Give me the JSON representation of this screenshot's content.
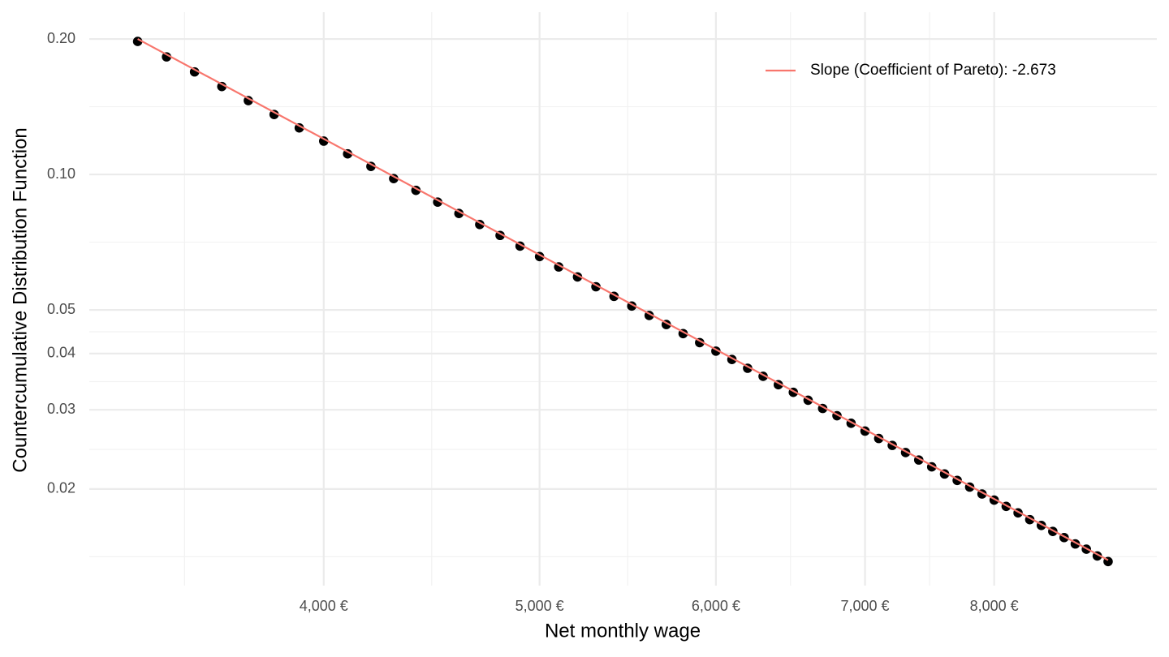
{
  "chart_data": {
    "type": "scatter",
    "x_label": "Net monthly wage",
    "y_label": "Countercumulative Distribution Function",
    "xlog": true,
    "ylog": true,
    "grid": true,
    "legend": "top-right",
    "xlim": [
      3139,
      9465
    ],
    "ylim": [
      0.0122,
      0.2294
    ],
    "xticks": [
      {
        "value": 4000,
        "label": "4,000 €"
      },
      {
        "value": 5000,
        "label": "5,000 €"
      },
      {
        "value": 6000,
        "label": "6,000 €"
      },
      {
        "value": 7000,
        "label": "7,000 €"
      },
      {
        "value": 8000,
        "label": "8,000 €"
      }
    ],
    "yticks": [
      0.02,
      0.03,
      0.04,
      0.05,
      {
        "value": 0.1,
        "label": "0.10"
      },
      {
        "value": 0.2,
        "label": "0.20"
      }
    ],
    "series": [
      {
        "color": "#000000",
        "x": [
          3300,
          3400,
          3500,
          3600,
          3700,
          3800,
          3900,
          4000,
          4100,
          4200,
          4300,
          4400,
          4500,
          4600,
          4700,
          4800,
          4900,
          5000,
          5100,
          5200,
          5300,
          5400,
          5500,
          5600,
          5700,
          5800,
          5900,
          6000,
          6100,
          6200,
          6300,
          6400,
          6500,
          6600,
          6700,
          6800,
          6900,
          7000,
          7100,
          7200,
          7300,
          7400,
          7500,
          7600,
          7700,
          7800,
          7900,
          8000,
          8100,
          8200,
          8300,
          8400,
          8500,
          8600,
          8700,
          8800,
          8900,
          9000
        ],
        "values": [
          0.1975,
          0.1825,
          0.169,
          0.1568,
          0.1459,
          0.1359,
          0.1269,
          0.1186,
          0.1111,
          0.1042,
          0.0979,
          0.0922,
          0.0868,
          0.0819,
          0.0774,
          0.0732,
          0.0693,
          0.0657,
          0.0623,
          0.0592,
          0.0563,
          0.0536,
          0.051,
          0.0486,
          0.0464,
          0.0443,
          0.0423,
          0.0405,
          0.0388,
          0.0371,
          0.0356,
          0.0341,
          0.0328,
          0.0315,
          0.0302,
          0.0291,
          0.028,
          0.0269,
          0.0259,
          0.025,
          0.0241,
          0.0232,
          0.0224,
          0.0216,
          0.0209,
          0.0202,
          0.0195,
          0.0189,
          0.0183,
          0.0177,
          0.0171,
          0.0166,
          0.0161,
          0.0156,
          0.0151,
          0.0147,
          0.0142,
          0.0138
        ]
      },
      {
        "name": "Slope (Coefficient of Pareto): -2.673",
        "type": "line",
        "color": "#f8766d",
        "x": [
          3300,
          9000
        ],
        "values": [
          0.2,
          0.0139
        ]
      }
    ]
  }
}
